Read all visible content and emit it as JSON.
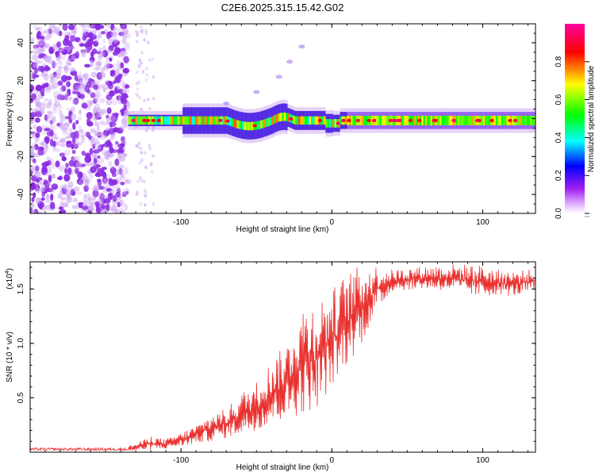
{
  "page": {
    "title": "C2E6.2025.315.15.42.G02"
  },
  "chart_data": [
    {
      "type": "heatmap",
      "title": "C2E6.2025.315.15.42.G02",
      "xlabel": "Height of straight line (km)",
      "ylabel": "Frequency (Hz)",
      "xlim": [
        -200,
        135
      ],
      "ylim": [
        -50,
        50
      ],
      "x_ticks": [
        -100,
        0,
        100
      ],
      "x_tick_labels": [
        "-100",
        "0",
        "100"
      ],
      "y_ticks": [
        -40,
        -20,
        0,
        20,
        40
      ],
      "y_tick_labels": [
        "-40",
        "-20",
        "0",
        "20",
        "40"
      ],
      "colorbar": {
        "label": "Normalized spectral amplitude",
        "range": [
          0,
          1
        ],
        "ticks": [
          0.0,
          0.2,
          0.4,
          0.6,
          0.8
        ],
        "tick_labels": [
          "0.0",
          "0.2",
          "0.4",
          "0.6",
          "0.8"
        ],
        "colors": [
          "#ffffff",
          "#a020f0",
          "#0000ff",
          "#00ffff",
          "#00ff00",
          "#ffff00",
          "#ff0000",
          "#ff00a0"
        ]
      },
      "features": [
        {
          "name": "noise_region",
          "x_range": [
            -200,
            -135
          ],
          "y_range": [
            -50,
            50
          ],
          "amplitude": 0.15
        },
        {
          "name": "main_ridge",
          "x_range": [
            -135,
            135
          ],
          "frequency_hz": -1,
          "amplitude_range": [
            0.3,
            0.9
          ]
        },
        {
          "name": "faint_harmonic",
          "points": [
            [
              -70,
              8
            ],
            [
              -50,
              14
            ],
            [
              -35,
              22
            ],
            [
              -28,
              30
            ],
            [
              -20,
              38
            ]
          ],
          "amplitude": 0.2
        }
      ]
    },
    {
      "type": "line",
      "xlabel": "Height of straight line (km)",
      "ylabel": "SNR (10 * v/v)",
      "y_scale_label": "(x10",
      "y_scale_exponent": "4",
      "xlim": [
        -200,
        135
      ],
      "ylim": [
        0,
        17500
      ],
      "x_ticks": [
        -100,
        0,
        100
      ],
      "x_tick_labels": [
        "-100",
        "0",
        "100"
      ],
      "y_ticks": [
        5000,
        10000,
        15000
      ],
      "y_tick_labels": [
        "0.5",
        "1.0",
        "1.5"
      ],
      "color": "#e8302e",
      "series": [
        {
          "name": "SNR envelope",
          "x": [
            -200,
            -140,
            -130,
            -120,
            -110,
            -100,
            -90,
            -80,
            -70,
            -60,
            -50,
            -40,
            -30,
            -20,
            -10,
            0,
            10,
            20,
            30,
            40,
            60,
            80,
            100,
            110,
            120,
            135
          ],
          "y_low": [
            0,
            0,
            100,
            200,
            300,
            500,
            800,
            1000,
            1300,
            1600,
            2000,
            2500,
            3000,
            3500,
            4000,
            6000,
            8000,
            10000,
            13000,
            14800,
            15000,
            14800,
            14200,
            14500,
            14300,
            14800
          ],
          "y_high": [
            400,
            400,
            800,
            1500,
            1200,
            1800,
            2500,
            3500,
            4000,
            5500,
            6500,
            8500,
            10000,
            13500,
            14000,
            15000,
            16500,
            17300,
            17200,
            16800,
            17100,
            17300,
            17200,
            16800,
            16700,
            16800
          ]
        }
      ]
    }
  ]
}
